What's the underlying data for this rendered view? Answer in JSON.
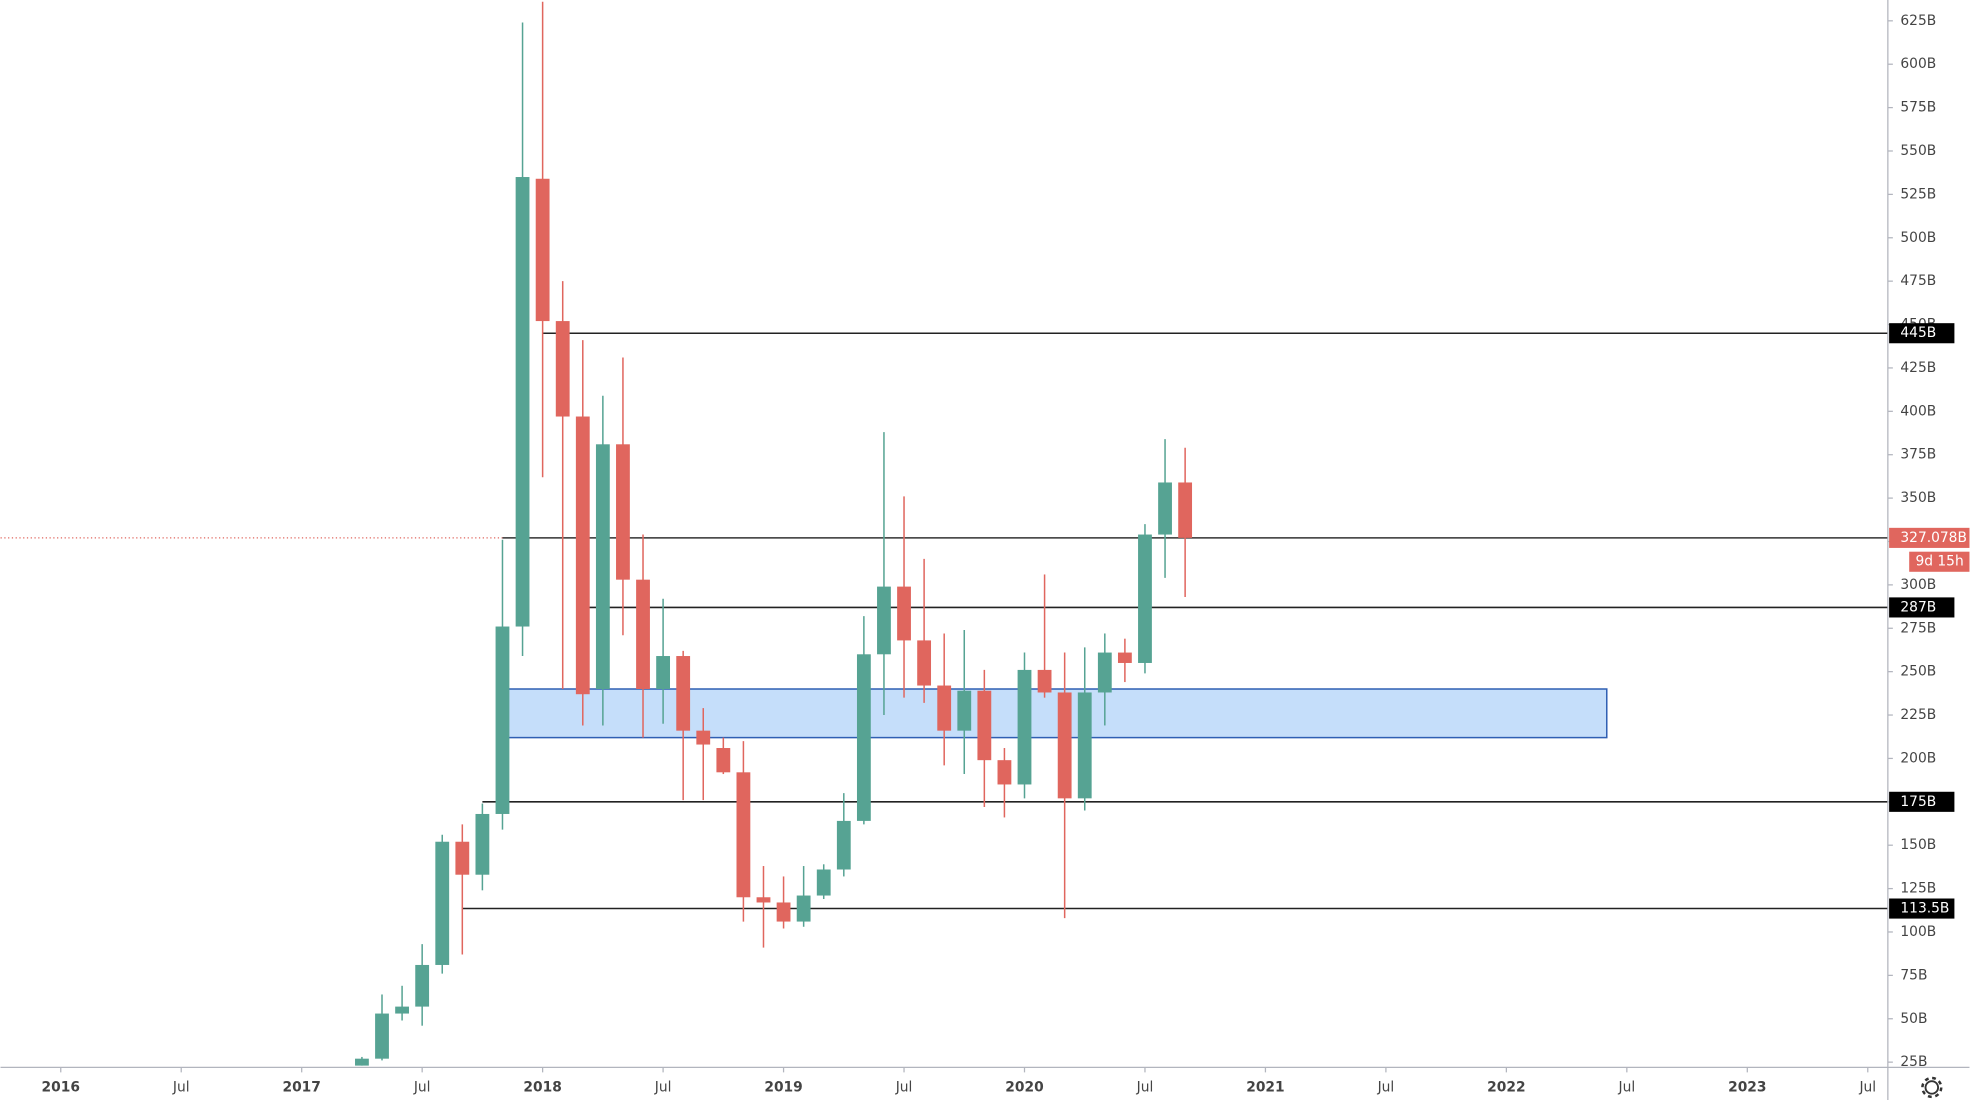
{
  "chart_data": {
    "type": "candlestick",
    "x": [
      "2017-04",
      "2017-05",
      "2017-06",
      "2017-07",
      "2017-08",
      "2017-09",
      "2017-10",
      "2017-11",
      "2017-12",
      "2018-01",
      "2018-02",
      "2018-03",
      "2018-04",
      "2018-05",
      "2018-06",
      "2018-07",
      "2018-08",
      "2018-09",
      "2018-10",
      "2018-11",
      "2018-12",
      "2019-01",
      "2019-02",
      "2019-03",
      "2019-04",
      "2019-05",
      "2019-06",
      "2019-07",
      "2019-08",
      "2019-09",
      "2019-10",
      "2019-11",
      "2019-12",
      "2020-01",
      "2020-02",
      "2020-03",
      "2020-04",
      "2020-05",
      "2020-06",
      "2020-07",
      "2020-08",
      "2020-09"
    ],
    "open": [
      23,
      27,
      53,
      57,
      81,
      152,
      133,
      168,
      276,
      534,
      452,
      397,
      240,
      381,
      303,
      240,
      259,
      216,
      206,
      192,
      120,
      117,
      106,
      121,
      136,
      164,
      260,
      299,
      268,
      242,
      216,
      239,
      199,
      185,
      251,
      238,
      177,
      238,
      261,
      255,
      329,
      359
    ],
    "high": [
      28,
      64,
      69,
      93,
      156,
      162,
      174,
      326,
      624,
      636,
      475,
      441,
      409,
      431,
      329,
      292,
      262,
      229,
      212,
      210,
      138,
      132,
      138,
      139,
      180,
      282,
      388,
      351,
      315,
      272,
      274,
      251,
      206,
      261,
      306,
      261,
      264,
      272,
      269,
      335,
      384,
      379
    ],
    "low": [
      23,
      26,
      49,
      46,
      76,
      87,
      124,
      159,
      259,
      362,
      240,
      219,
      219,
      271,
      212,
      220,
      176,
      176,
      191,
      106,
      91,
      102,
      103,
      119,
      132,
      162,
      225,
      235,
      232,
      196,
      191,
      172,
      166,
      177,
      235,
      108,
      170,
      219,
      244,
      249,
      304,
      293
    ],
    "close": [
      27,
      53,
      57,
      81,
      152,
      133,
      168,
      276,
      535,
      452,
      397,
      237,
      381,
      303,
      240,
      259,
      216,
      208,
      192,
      120,
      117,
      106,
      121,
      136,
      164,
      260,
      299,
      268,
      242,
      216,
      239,
      199,
      185,
      251,
      238,
      177,
      238,
      261,
      255,
      329,
      359,
      327.078
    ],
    "up_color": "#56a393",
    "down_color": "#e0665e",
    "xlim": [
      "2015-10",
      "2023-08"
    ],
    "ylim": [
      22,
      637
    ],
    "xticks": [
      {
        "value": "2016-01",
        "label": "2016"
      },
      {
        "value": "2016-07",
        "label": "Jul"
      },
      {
        "value": "2017-01",
        "label": "2017"
      },
      {
        "value": "2017-07",
        "label": "Jul"
      },
      {
        "value": "2018-01",
        "label": "2018"
      },
      {
        "value": "2018-07",
        "label": "Jul"
      },
      {
        "value": "2019-01",
        "label": "2019"
      },
      {
        "value": "2019-07",
        "label": "Jul"
      },
      {
        "value": "2020-01",
        "label": "2020"
      },
      {
        "value": "2020-07",
        "label": "Jul"
      },
      {
        "value": "2021-01",
        "label": "2021"
      },
      {
        "value": "2021-07",
        "label": "Jul"
      },
      {
        "value": "2022-01",
        "label": "2022"
      },
      {
        "value": "2022-07",
        "label": "Jul"
      },
      {
        "value": "2023-01",
        "label": "2023"
      },
      {
        "value": "2023-07",
        "label": "Jul"
      }
    ],
    "yticks": [
      {
        "value": 25,
        "label": "25B"
      },
      {
        "value": 50,
        "label": "50B"
      },
      {
        "value": 75,
        "label": "75B"
      },
      {
        "value": 100,
        "label": "100B"
      },
      {
        "value": 125,
        "label": "125B"
      },
      {
        "value": 150,
        "label": "150B"
      },
      {
        "value": 175,
        "label": "175B"
      },
      {
        "value": 200,
        "label": "200B"
      },
      {
        "value": 225,
        "label": "225B"
      },
      {
        "value": 250,
        "label": "250B"
      },
      {
        "value": 275,
        "label": "275B"
      },
      {
        "value": 300,
        "label": "300B"
      },
      {
        "value": 325,
        "label": "325B"
      },
      {
        "value": 350,
        "label": "350B"
      },
      {
        "value": 375,
        "label": "375B"
      },
      {
        "value": 400,
        "label": "400B"
      },
      {
        "value": 425,
        "label": "425B"
      },
      {
        "value": 450,
        "label": "450B"
      },
      {
        "value": 475,
        "label": "475B"
      },
      {
        "value": 500,
        "label": "500B"
      },
      {
        "value": 525,
        "label": "525B"
      },
      {
        "value": 550,
        "label": "550B"
      },
      {
        "value": 575,
        "label": "575B"
      },
      {
        "value": 600,
        "label": "600B"
      },
      {
        "value": 625,
        "label": "625B"
      }
    ],
    "levels": [
      {
        "value": 445,
        "label": "445B",
        "from": "2018-01"
      },
      {
        "value": 287,
        "label": "287B",
        "from": "2018-03"
      },
      {
        "value": 175,
        "label": "175B",
        "from": "2017-10"
      },
      {
        "value": 113.5,
        "label": "113.5B",
        "from": "2017-09"
      }
    ],
    "price_line": {
      "value": 327.078,
      "label": "327.078B",
      "countdown": "9d 15h",
      "from": "2017-11",
      "color": "#e0665e"
    },
    "zone": {
      "from": "2017-11",
      "to": "2022-06",
      "top": 240,
      "bottom": 212,
      "color": "#c5defa",
      "border": "#2f5fb3"
    },
    "grid": false
  }
}
